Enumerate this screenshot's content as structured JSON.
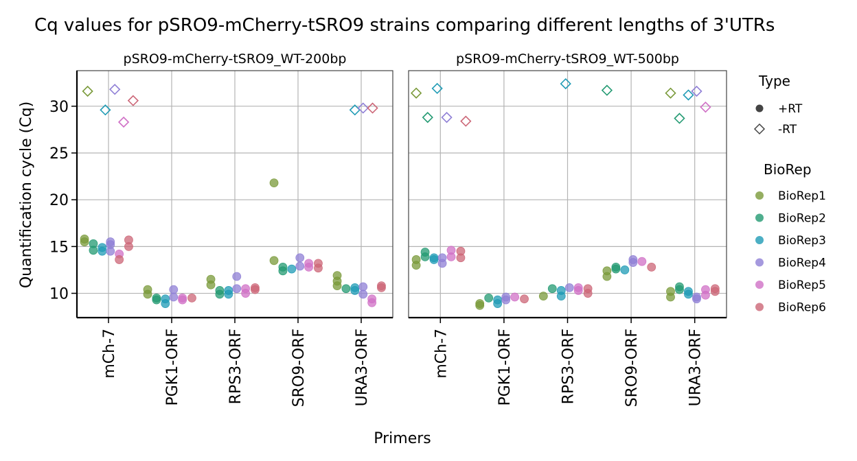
{
  "chart_data": {
    "type": "scatter",
    "title": "Cq values for pSRO9-mCherry-tSRO9 strains comparing different lengths of 3'UTRs",
    "xlabel": "Primers",
    "ylabel": "Quantification cycle (Cq)",
    "categories": [
      "mCh-7",
      "PGK1-ORF",
      "RPS3-ORF",
      "SRO9-ORF",
      "URA3-ORF"
    ],
    "ylim": [
      7.4,
      33.8
    ],
    "yticks": [
      10,
      15,
      20,
      25,
      30
    ],
    "grid": true,
    "legend_placement": "right",
    "legend_type": {
      "title": "Type",
      "entries": [
        {
          "label": "+RT",
          "shape": "circle"
        },
        {
          "label": "-RT",
          "shape": "diamond"
        }
      ]
    },
    "legend_biorep": {
      "title": "BioRep",
      "entries": [
        {
          "label": "BioRep1",
          "color": "#7a9a3a"
        },
        {
          "label": "BioRep2",
          "color": "#239a72"
        },
        {
          "label": "BioRep3",
          "color": "#1f9bb5"
        },
        {
          "label": "BioRep4",
          "color": "#8f7fd6"
        },
        {
          "label": "BioRep5",
          "color": "#d070c6"
        },
        {
          "label": "BioRep6",
          "color": "#cc6677"
        }
      ]
    },
    "panels": [
      {
        "title": "pSRO9-mCherry-tSRO9_WT-200bp",
        "points": [
          {
            "cat": 0,
            "rep": 1,
            "type": "+RT",
            "y": 15.8,
            "dx": -0.38
          },
          {
            "cat": 0,
            "rep": 1,
            "type": "+RT",
            "y": 15.5,
            "dx": -0.38
          },
          {
            "cat": 0,
            "rep": 2,
            "type": "+RT",
            "y": 15.3,
            "dx": -0.24
          },
          {
            "cat": 0,
            "rep": 2,
            "type": "+RT",
            "y": 14.6,
            "dx": -0.24
          },
          {
            "cat": 0,
            "rep": 3,
            "type": "+RT",
            "y": 14.9,
            "dx": -0.1
          },
          {
            "cat": 0,
            "rep": 3,
            "type": "+RT",
            "y": 14.5,
            "dx": -0.1
          },
          {
            "cat": 0,
            "rep": 4,
            "type": "+RT",
            "y": 15.5,
            "dx": 0.03
          },
          {
            "cat": 0,
            "rep": 4,
            "type": "+RT",
            "y": 15.2,
            "dx": 0.03
          },
          {
            "cat": 0,
            "rep": 4,
            "type": "+RT",
            "y": 14.5,
            "dx": 0.03
          },
          {
            "cat": 0,
            "rep": 5,
            "type": "+RT",
            "y": 14.2,
            "dx": 0.17
          },
          {
            "cat": 0,
            "rep": 6,
            "type": "+RT",
            "y": 13.6,
            "dx": 0.17
          },
          {
            "cat": 0,
            "rep": 6,
            "type": "+RT",
            "y": 15.7,
            "dx": 0.32
          },
          {
            "cat": 0,
            "rep": 6,
            "type": "+RT",
            "y": 15.0,
            "dx": 0.32
          },
          {
            "cat": 0,
            "rep": 1,
            "type": "-RT",
            "y": 31.6,
            "dx": -0.33
          },
          {
            "cat": 0,
            "rep": 3,
            "type": "-RT",
            "y": 29.6,
            "dx": -0.05
          },
          {
            "cat": 0,
            "rep": 4,
            "type": "-RT",
            "y": 31.8,
            "dx": 0.1
          },
          {
            "cat": 0,
            "rep": 5,
            "type": "-RT",
            "y": 28.3,
            "dx": 0.24
          },
          {
            "cat": 0,
            "rep": 6,
            "type": "-RT",
            "y": 30.6,
            "dx": 0.39
          },
          {
            "cat": 1,
            "rep": 1,
            "type": "+RT",
            "y": 10.4,
            "dx": -0.38
          },
          {
            "cat": 1,
            "rep": 1,
            "type": "+RT",
            "y": 9.9,
            "dx": -0.38
          },
          {
            "cat": 1,
            "rep": 2,
            "type": "+RT",
            "y": 9.5,
            "dx": -0.24
          },
          {
            "cat": 1,
            "rep": 2,
            "type": "+RT",
            "y": 9.3,
            "dx": -0.24
          },
          {
            "cat": 1,
            "rep": 3,
            "type": "+RT",
            "y": 9.4,
            "dx": -0.1
          },
          {
            "cat": 1,
            "rep": 3,
            "type": "+RT",
            "y": 8.9,
            "dx": -0.1
          },
          {
            "cat": 1,
            "rep": 4,
            "type": "+RT",
            "y": 10.4,
            "dx": 0.03
          },
          {
            "cat": 1,
            "rep": 4,
            "type": "+RT",
            "y": 9.6,
            "dx": 0.03
          },
          {
            "cat": 1,
            "rep": 5,
            "type": "+RT",
            "y": 9.5,
            "dx": 0.17
          },
          {
            "cat": 1,
            "rep": 5,
            "type": "+RT",
            "y": 9.3,
            "dx": 0.17
          },
          {
            "cat": 1,
            "rep": 6,
            "type": "+RT",
            "y": 9.5,
            "dx": 0.32
          },
          {
            "cat": 2,
            "rep": 1,
            "type": "+RT",
            "y": 11.5,
            "dx": -0.38
          },
          {
            "cat": 2,
            "rep": 1,
            "type": "+RT",
            "y": 10.9,
            "dx": -0.38
          },
          {
            "cat": 2,
            "rep": 2,
            "type": "+RT",
            "y": 10.3,
            "dx": -0.24
          },
          {
            "cat": 2,
            "rep": 2,
            "type": "+RT",
            "y": 9.9,
            "dx": -0.24
          },
          {
            "cat": 2,
            "rep": 3,
            "type": "+RT",
            "y": 10.3,
            "dx": -0.1
          },
          {
            "cat": 2,
            "rep": 3,
            "type": "+RT",
            "y": 9.9,
            "dx": -0.1
          },
          {
            "cat": 2,
            "rep": 4,
            "type": "+RT",
            "y": 11.8,
            "dx": 0.03
          },
          {
            "cat": 2,
            "rep": 4,
            "type": "+RT",
            "y": 10.5,
            "dx": 0.03
          },
          {
            "cat": 2,
            "rep": 5,
            "type": "+RT",
            "y": 10.5,
            "dx": 0.17
          },
          {
            "cat": 2,
            "rep": 5,
            "type": "+RT",
            "y": 10.0,
            "dx": 0.17
          },
          {
            "cat": 2,
            "rep": 6,
            "type": "+RT",
            "y": 10.6,
            "dx": 0.32
          },
          {
            "cat": 2,
            "rep": 6,
            "type": "+RT",
            "y": 10.4,
            "dx": 0.32
          },
          {
            "cat": 3,
            "rep": 1,
            "type": "+RT",
            "y": 21.8,
            "dx": -0.38
          },
          {
            "cat": 3,
            "rep": 1,
            "type": "+RT",
            "y": 13.5,
            "dx": -0.38
          },
          {
            "cat": 3,
            "rep": 2,
            "type": "+RT",
            "y": 12.8,
            "dx": -0.24
          },
          {
            "cat": 3,
            "rep": 2,
            "type": "+RT",
            "y": 12.4,
            "dx": -0.24
          },
          {
            "cat": 3,
            "rep": 3,
            "type": "+RT",
            "y": 12.6,
            "dx": -0.1
          },
          {
            "cat": 3,
            "rep": 4,
            "type": "+RT",
            "y": 13.8,
            "dx": 0.03
          },
          {
            "cat": 3,
            "rep": 4,
            "type": "+RT",
            "y": 12.9,
            "dx": 0.03
          },
          {
            "cat": 3,
            "rep": 5,
            "type": "+RT",
            "y": 13.2,
            "dx": 0.17
          },
          {
            "cat": 3,
            "rep": 5,
            "type": "+RT",
            "y": 12.8,
            "dx": 0.17
          },
          {
            "cat": 3,
            "rep": 6,
            "type": "+RT",
            "y": 13.2,
            "dx": 0.32
          },
          {
            "cat": 3,
            "rep": 6,
            "type": "+RT",
            "y": 12.7,
            "dx": 0.32
          },
          {
            "cat": 4,
            "rep": 1,
            "type": "+RT",
            "y": 11.9,
            "dx": -0.38
          },
          {
            "cat": 4,
            "rep": 1,
            "type": "+RT",
            "y": 11.3,
            "dx": -0.38
          },
          {
            "cat": 4,
            "rep": 1,
            "type": "+RT",
            "y": 10.8,
            "dx": -0.38
          },
          {
            "cat": 4,
            "rep": 2,
            "type": "+RT",
            "y": 10.5,
            "dx": -0.24
          },
          {
            "cat": 4,
            "rep": 3,
            "type": "+RT",
            "y": 10.6,
            "dx": -0.1
          },
          {
            "cat": 4,
            "rep": 3,
            "type": "+RT",
            "y": 10.3,
            "dx": -0.1
          },
          {
            "cat": 4,
            "rep": 4,
            "type": "+RT",
            "y": 10.7,
            "dx": 0.03
          },
          {
            "cat": 4,
            "rep": 4,
            "type": "+RT",
            "y": 9.9,
            "dx": 0.03
          },
          {
            "cat": 4,
            "rep": 5,
            "type": "+RT",
            "y": 9.4,
            "dx": 0.17
          },
          {
            "cat": 4,
            "rep": 5,
            "type": "+RT",
            "y": 9.0,
            "dx": 0.17
          },
          {
            "cat": 4,
            "rep": 6,
            "type": "+RT",
            "y": 10.8,
            "dx": 0.32
          },
          {
            "cat": 4,
            "rep": 6,
            "type": "+RT",
            "y": 10.6,
            "dx": 0.32
          },
          {
            "cat": 4,
            "rep": 3,
            "type": "-RT",
            "y": 29.6,
            "dx": -0.1
          },
          {
            "cat": 4,
            "rep": 4,
            "type": "-RT",
            "y": 29.8,
            "dx": 0.03
          },
          {
            "cat": 4,
            "rep": 6,
            "type": "-RT",
            "y": 29.8,
            "dx": 0.18
          }
        ]
      },
      {
        "title": "pSRO9-mCherry-tSRO9_WT-500bp",
        "points": [
          {
            "cat": 0,
            "rep": 1,
            "type": "+RT",
            "y": 13.6,
            "dx": -0.38
          },
          {
            "cat": 0,
            "rep": 1,
            "type": "+RT",
            "y": 13.0,
            "dx": -0.38
          },
          {
            "cat": 0,
            "rep": 2,
            "type": "+RT",
            "y": 14.4,
            "dx": -0.24
          },
          {
            "cat": 0,
            "rep": 2,
            "type": "+RT",
            "y": 13.9,
            "dx": -0.24
          },
          {
            "cat": 0,
            "rep": 3,
            "type": "+RT",
            "y": 13.8,
            "dx": -0.1
          },
          {
            "cat": 0,
            "rep": 3,
            "type": "+RT",
            "y": 13.6,
            "dx": -0.1
          },
          {
            "cat": 0,
            "rep": 4,
            "type": "+RT",
            "y": 13.8,
            "dx": 0.03
          },
          {
            "cat": 0,
            "rep": 4,
            "type": "+RT",
            "y": 13.2,
            "dx": 0.03
          },
          {
            "cat": 0,
            "rep": 5,
            "type": "+RT",
            "y": 14.6,
            "dx": 0.17
          },
          {
            "cat": 0,
            "rep": 5,
            "type": "+RT",
            "y": 13.9,
            "dx": 0.17
          },
          {
            "cat": 0,
            "rep": 6,
            "type": "+RT",
            "y": 14.5,
            "dx": 0.32
          },
          {
            "cat": 0,
            "rep": 6,
            "type": "+RT",
            "y": 13.8,
            "dx": 0.32
          },
          {
            "cat": 0,
            "rep": 1,
            "type": "-RT",
            "y": 31.4,
            "dx": -0.38
          },
          {
            "cat": 0,
            "rep": 2,
            "type": "-RT",
            "y": 28.8,
            "dx": -0.2
          },
          {
            "cat": 0,
            "rep": 3,
            "type": "-RT",
            "y": 31.9,
            "dx": -0.05
          },
          {
            "cat": 0,
            "rep": 4,
            "type": "-RT",
            "y": 28.8,
            "dx": 0.1
          },
          {
            "cat": 0,
            "rep": 6,
            "type": "-RT",
            "y": 28.4,
            "dx": 0.4
          },
          {
            "cat": 1,
            "rep": 1,
            "type": "+RT",
            "y": 8.9,
            "dx": -0.38
          },
          {
            "cat": 1,
            "rep": 1,
            "type": "+RT",
            "y": 8.7,
            "dx": -0.38
          },
          {
            "cat": 1,
            "rep": 2,
            "type": "+RT",
            "y": 9.5,
            "dx": -0.24
          },
          {
            "cat": 1,
            "rep": 3,
            "type": "+RT",
            "y": 9.3,
            "dx": -0.1
          },
          {
            "cat": 1,
            "rep": 3,
            "type": "+RT",
            "y": 8.9,
            "dx": -0.1
          },
          {
            "cat": 1,
            "rep": 4,
            "type": "+RT",
            "y": 9.6,
            "dx": 0.03
          },
          {
            "cat": 1,
            "rep": 4,
            "type": "+RT",
            "y": 9.3,
            "dx": 0.03
          },
          {
            "cat": 1,
            "rep": 5,
            "type": "+RT",
            "y": 9.6,
            "dx": 0.17
          },
          {
            "cat": 1,
            "rep": 6,
            "type": "+RT",
            "y": 9.4,
            "dx": 0.32
          },
          {
            "cat": 2,
            "rep": 1,
            "type": "+RT",
            "y": 9.7,
            "dx": -0.38
          },
          {
            "cat": 2,
            "rep": 2,
            "type": "+RT",
            "y": 10.5,
            "dx": -0.24
          },
          {
            "cat": 2,
            "rep": 3,
            "type": "+RT",
            "y": 10.3,
            "dx": -0.1
          },
          {
            "cat": 2,
            "rep": 3,
            "type": "+RT",
            "y": 9.7,
            "dx": -0.1
          },
          {
            "cat": 2,
            "rep": 4,
            "type": "+RT",
            "y": 10.6,
            "dx": 0.03
          },
          {
            "cat": 2,
            "rep": 5,
            "type": "+RT",
            "y": 10.6,
            "dx": 0.17
          },
          {
            "cat": 2,
            "rep": 5,
            "type": "+RT",
            "y": 10.3,
            "dx": 0.17
          },
          {
            "cat": 2,
            "rep": 6,
            "type": "+RT",
            "y": 10.5,
            "dx": 0.32
          },
          {
            "cat": 2,
            "rep": 6,
            "type": "+RT",
            "y": 10.0,
            "dx": 0.32
          },
          {
            "cat": 2,
            "rep": 3,
            "type": "-RT",
            "y": 32.4,
            "dx": -0.03
          },
          {
            "cat": 3,
            "rep": 1,
            "type": "+RT",
            "y": 12.4,
            "dx": -0.38
          },
          {
            "cat": 3,
            "rep": 1,
            "type": "+RT",
            "y": 11.8,
            "dx": -0.38
          },
          {
            "cat": 3,
            "rep": 2,
            "type": "+RT",
            "y": 12.8,
            "dx": -0.24
          },
          {
            "cat": 3,
            "rep": 2,
            "type": "+RT",
            "y": 12.6,
            "dx": -0.24
          },
          {
            "cat": 3,
            "rep": 3,
            "type": "+RT",
            "y": 12.5,
            "dx": -0.1
          },
          {
            "cat": 3,
            "rep": 4,
            "type": "+RT",
            "y": 13.6,
            "dx": 0.03
          },
          {
            "cat": 3,
            "rep": 4,
            "type": "+RT",
            "y": 13.3,
            "dx": 0.03
          },
          {
            "cat": 3,
            "rep": 5,
            "type": "+RT",
            "y": 13.4,
            "dx": 0.17
          },
          {
            "cat": 3,
            "rep": 6,
            "type": "+RT",
            "y": 12.8,
            "dx": 0.32
          },
          {
            "cat": 3,
            "rep": 2,
            "type": "-RT",
            "y": 31.7,
            "dx": -0.38
          },
          {
            "cat": 4,
            "rep": 1,
            "type": "+RT",
            "y": 10.2,
            "dx": -0.38
          },
          {
            "cat": 4,
            "rep": 1,
            "type": "+RT",
            "y": 9.6,
            "dx": -0.38
          },
          {
            "cat": 4,
            "rep": 2,
            "type": "+RT",
            "y": 10.7,
            "dx": -0.24
          },
          {
            "cat": 4,
            "rep": 2,
            "type": "+RT",
            "y": 10.4,
            "dx": -0.24
          },
          {
            "cat": 4,
            "rep": 3,
            "type": "+RT",
            "y": 10.2,
            "dx": -0.1
          },
          {
            "cat": 4,
            "rep": 3,
            "type": "+RT",
            "y": 9.9,
            "dx": -0.1
          },
          {
            "cat": 4,
            "rep": 4,
            "type": "+RT",
            "y": 9.6,
            "dx": 0.03
          },
          {
            "cat": 4,
            "rep": 4,
            "type": "+RT",
            "y": 9.4,
            "dx": 0.03
          },
          {
            "cat": 4,
            "rep": 5,
            "type": "+RT",
            "y": 10.4,
            "dx": 0.17
          },
          {
            "cat": 4,
            "rep": 5,
            "type": "+RT",
            "y": 9.8,
            "dx": 0.17
          },
          {
            "cat": 4,
            "rep": 6,
            "type": "+RT",
            "y": 10.5,
            "dx": 0.32
          },
          {
            "cat": 4,
            "rep": 6,
            "type": "+RT",
            "y": 10.2,
            "dx": 0.32
          },
          {
            "cat": 4,
            "rep": 1,
            "type": "-RT",
            "y": 31.4,
            "dx": -0.38
          },
          {
            "cat": 4,
            "rep": 2,
            "type": "-RT",
            "y": 28.7,
            "dx": -0.24
          },
          {
            "cat": 4,
            "rep": 3,
            "type": "-RT",
            "y": 31.2,
            "dx": -0.1
          },
          {
            "cat": 4,
            "rep": 4,
            "type": "-RT",
            "y": 31.6,
            "dx": 0.03
          },
          {
            "cat": 4,
            "rep": 5,
            "type": "-RT",
            "y": 29.9,
            "dx": 0.17
          }
        ]
      }
    ]
  }
}
